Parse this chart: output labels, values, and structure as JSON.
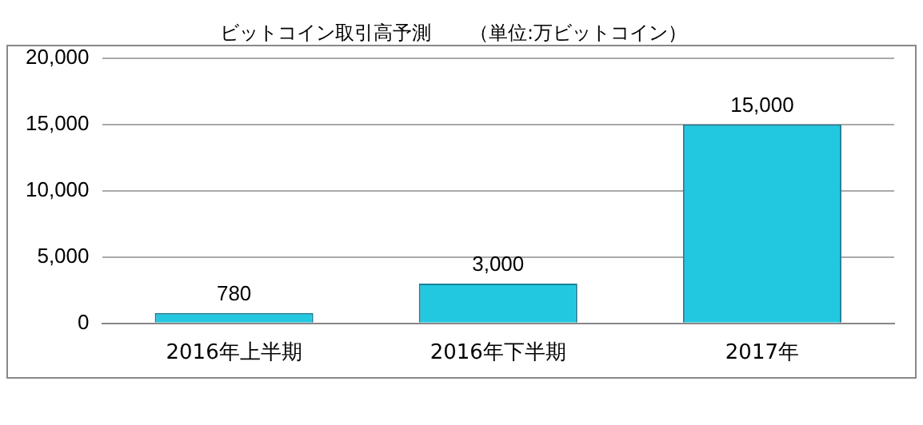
{
  "chart_data": {
    "type": "bar",
    "title": "ビットコイン取引高予測　　（単位:万ビットコイン）",
    "categories": [
      "2016年上半期",
      "2016年下半期",
      "2017年"
    ],
    "values": [
      780,
      3000,
      15000
    ],
    "color": "#22c8e0",
    "value_labels": [
      "780",
      "3,000",
      "15,000"
    ],
    "ylim": [
      0,
      20000
    ],
    "yticks": [
      0,
      {
        "value": 5000,
        "label": "5,000"
      },
      {
        "value": 10000,
        "label": "10,000"
      },
      {
        "value": 15000,
        "label": "15,000"
      },
      {
        "value": 20000,
        "label": "20,000"
      }
    ],
    "grid": "y"
  }
}
